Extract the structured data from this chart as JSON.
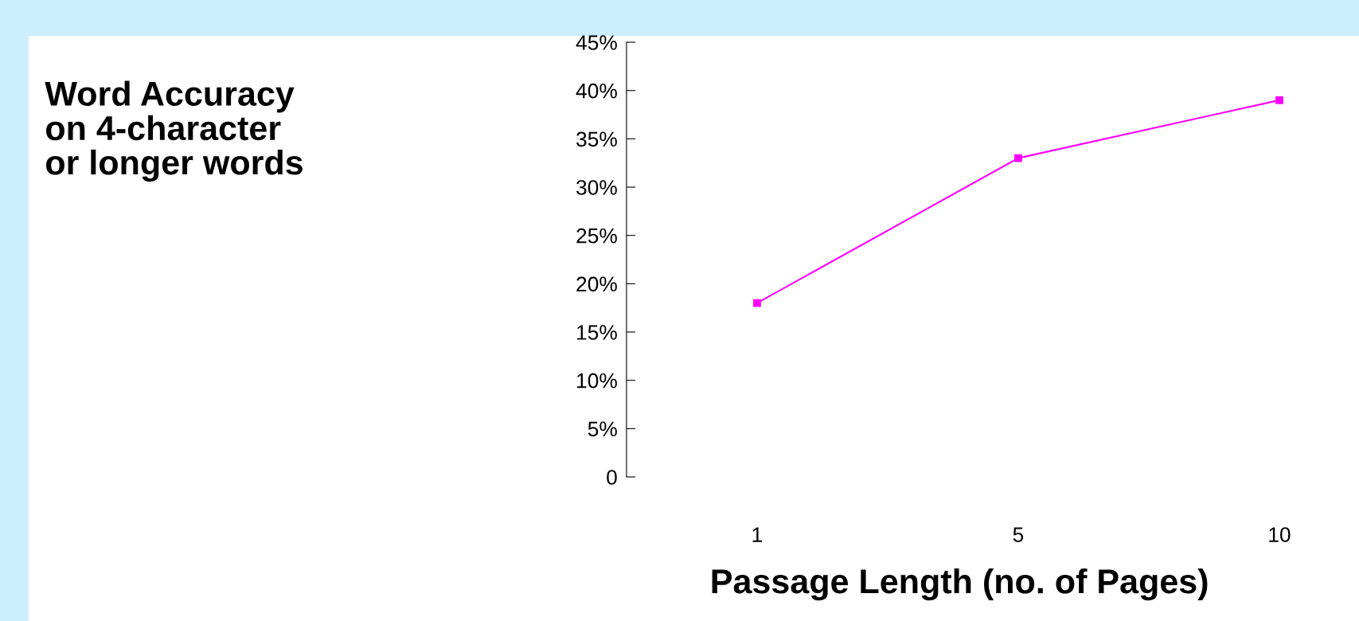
{
  "chart_data": {
    "type": "line",
    "annotations": [
      "Word Accuracy\non 4-character\nor longer words"
    ],
    "xlabel": "Passage Length (no. of Pages)",
    "categories": [
      "1",
      "5",
      "10"
    ],
    "series": [
      {
        "color": "#ff00ff",
        "values": [
          18,
          33,
          39
        ]
      }
    ],
    "ylim": [
      0,
      45
    ],
    "yticks": [
      {
        "value": 0,
        "label": "0"
      },
      {
        "value": 5,
        "label": "5%"
      },
      {
        "value": 10,
        "label": "10%"
      },
      {
        "value": 15,
        "label": "15%"
      },
      {
        "value": 20,
        "label": "20%"
      },
      {
        "value": 25,
        "label": "25%"
      },
      {
        "value": 30,
        "label": "30%"
      },
      {
        "value": 35,
        "label": "35%"
      },
      {
        "value": 40,
        "label": "40%"
      },
      {
        "value": 45,
        "label": "45%"
      }
    ],
    "grid": false,
    "legend": false,
    "marker": "square",
    "line_style": "solid"
  }
}
